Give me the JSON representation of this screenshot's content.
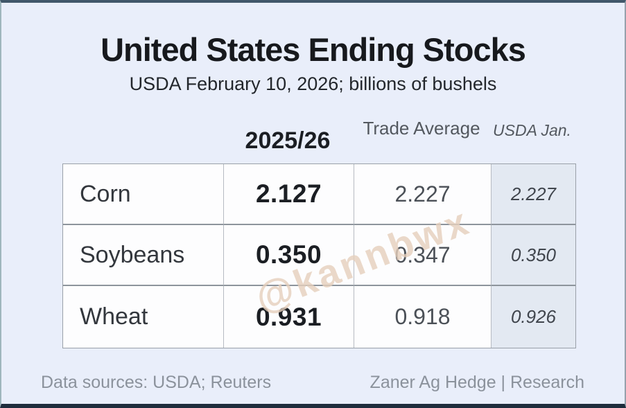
{
  "chart_data": {
    "type": "table",
    "title": "United States Ending Stocks",
    "subtitle": "USDA February 10, 2026; billions of bushels",
    "unit": "billions of bushels",
    "columns": [
      "",
      "2025/26",
      "Trade Average",
      "USDA Jan."
    ],
    "rows": [
      [
        "Corn",
        "2.127",
        "2.227",
        "2.227"
      ],
      [
        "Soybeans",
        "0.350",
        "0.347",
        "0.350"
      ],
      [
        "Wheat",
        "0.931",
        "0.918",
        "0.926"
      ]
    ],
    "layout_hints": {
      "bold_column": "2025/26",
      "shaded_italic_column": "USDA Jan."
    }
  },
  "footer": {
    "sources": "Data sources: USDA; Reuters",
    "branding": "Zaner Ag Hedge | Research"
  },
  "watermark": {
    "text": "@kannbwx"
  },
  "colors": {
    "background": "#e9eefa",
    "cell_background": "#fdfdfe",
    "highlight_column_background": "#e3e9f2",
    "text_primary": "#1b1e23",
    "text_secondary": "#53585f",
    "footer_text": "#8b929c",
    "watermark": "#e6d0bd",
    "border_top": "#41576a",
    "border_bottom": "#1e2c3c"
  }
}
